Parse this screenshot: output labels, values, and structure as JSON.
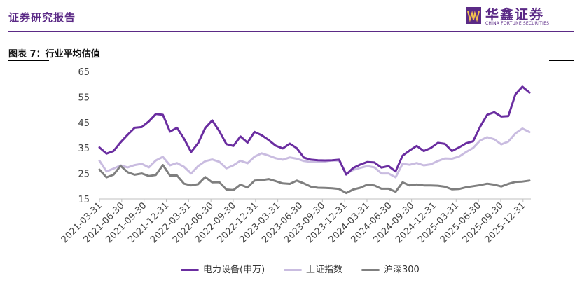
{
  "header": {
    "report_label": "证券研究报告",
    "logo_cn": "华鑫证券",
    "logo_en": "CHINA FORTUNE SECURITIES"
  },
  "figure": {
    "title": "图表 7：行业平均估值"
  },
  "colors": {
    "brand": "#5b2a86",
    "series_power": "#6a2da0",
    "series_sse": "#c9bce0",
    "series_csi300": "#7f7f7f"
  },
  "chart_data": {
    "type": "line",
    "ylim": [
      15,
      65
    ],
    "yticks": [
      15,
      25,
      35,
      45,
      55,
      65
    ],
    "x_tick_labels": [
      "2021-03-31",
      "2021-06-30",
      "2021-09-30",
      "2021-12-31",
      "2022-03-31",
      "2022-06-30",
      "2022-09-30",
      "2022-12-31",
      "2023-03-31",
      "2023-06-30",
      "2023-09-30",
      "2023-12-31",
      "2024-03-31",
      "2024-06-30",
      "2024-09-30",
      "2024-12-31",
      "2025-03-31",
      "2025-06-30",
      "2025-09-30",
      "2025-12-31"
    ],
    "grid": false,
    "legend_position": "bottom",
    "series": [
      {
        "name": "电力设备(申万)",
        "values": [
          35.2,
          32.8,
          33.8,
          37.2,
          40.2,
          42.9,
          43.2,
          45.4,
          48.3,
          48.0,
          41.4,
          42.9,
          38.6,
          33.4,
          36.9,
          42.8,
          45.8,
          41.6,
          36.5,
          35.8,
          39.5,
          37.1,
          41.3,
          40.0,
          38.1,
          35.9,
          34.8,
          36.7,
          34.9,
          31.2,
          30.4,
          30.2,
          30.1,
          30.2,
          30.4,
          24.6,
          27.2,
          28.5,
          29.5,
          29.3,
          27.3,
          27.9,
          25.8,
          32.0,
          34.0,
          35.8,
          33.8,
          35.0,
          37.0,
          36.6,
          33.8,
          35.2,
          36.8,
          37.6,
          43.3,
          48.0,
          49.0,
          47.3,
          47.5,
          56.0,
          59.0,
          56.7
        ]
      },
      {
        "name": "上证指数",
        "values": [
          30.0,
          25.8,
          26.9,
          28.2,
          27.4,
          28.3,
          28.8,
          27.4,
          30.1,
          31.5,
          28.2,
          29.1,
          27.6,
          25.0,
          27.9,
          29.8,
          30.5,
          29.6,
          27.0,
          28.2,
          30.0,
          29.0,
          31.6,
          32.9,
          32.0,
          31.0,
          30.4,
          31.3,
          30.8,
          29.9,
          29.5,
          29.5,
          29.7,
          30.1,
          30.0,
          24.8,
          26.4,
          27.2,
          27.9,
          27.4,
          25.0,
          25.0,
          23.5,
          28.8,
          28.4,
          29.1,
          28.2,
          28.6,
          29.9,
          30.9,
          30.8,
          31.6,
          33.4,
          35.0,
          37.9,
          39.2,
          38.4,
          36.4,
          37.5,
          40.7,
          42.6,
          41.2
        ]
      },
      {
        "name": "沪深300",
        "values": [
          26.5,
          23.5,
          24.5,
          28.0,
          25.5,
          24.5,
          25.0,
          24.0,
          24.4,
          28.3,
          24.2,
          24.2,
          21.0,
          20.3,
          20.8,
          23.6,
          21.5,
          21.6,
          18.7,
          18.5,
          20.6,
          19.5,
          22.2,
          22.4,
          22.8,
          22.0,
          21.1,
          20.9,
          22.2,
          21.1,
          19.8,
          19.4,
          19.3,
          19.2,
          18.9,
          17.3,
          18.7,
          19.4,
          20.6,
          20.3,
          19.0,
          19.0,
          17.8,
          21.5,
          20.3,
          20.7,
          20.3,
          20.3,
          20.2,
          19.8,
          18.8,
          18.9,
          19.6,
          20.0,
          20.4,
          21.0,
          20.6,
          19.9,
          20.9,
          21.7,
          21.8,
          22.2
        ]
      }
    ]
  }
}
